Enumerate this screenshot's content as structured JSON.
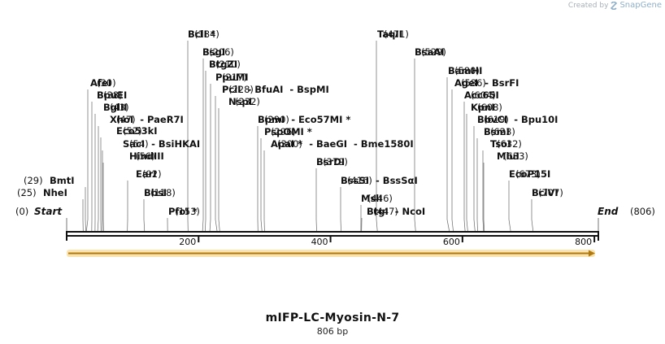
{
  "watermark": {
    "prefix": "Created by",
    "brand": "SnapGene",
    "icon": "snapgene-logo-icon"
  },
  "map": {
    "name": "mIFP-LC-Myosin-N-7",
    "length_text": "806 bp",
    "length": 806,
    "start_label": "Start",
    "start_pos": "(0)",
    "end_label": "End",
    "end_pos": "(806)",
    "tick_values": [
      200,
      400,
      600,
      800
    ],
    "feature_arrow_color": "#f5c56a",
    "sites": [
      {
        "label": "BmtI",
        "pos": "(29)",
        "bp": 29
      },
      {
        "label": "NheI",
        "pos": "(25)",
        "bp": 25
      },
      {
        "label": "AfeI",
        "pos": "(30)",
        "bp": 30
      },
      {
        "label": "BpuEI",
        "pos": "(38)",
        "bp": 38
      },
      {
        "label": "BglII",
        "pos": "(43)",
        "bp": 43
      },
      {
        "label": "XhoI  - PaeR7I",
        "pos": "(47)",
        "bp": 47
      },
      {
        "label": "Eco53kI",
        "pos": "(52)",
        "bp": 52
      },
      {
        "label": "SacI  - BsiHKAI",
        "pos": "(54)",
        "bp": 54
      },
      {
        "label": "HindIII",
        "pos": "(56)",
        "bp": 56
      },
      {
        "label": "EarI",
        "pos": "(92)",
        "bp": 92
      },
      {
        "label": "BbsI",
        "pos": "(118)",
        "bp": 118
      },
      {
        "label": "PfoI *",
        "pos": "(153)",
        "bp": 153
      },
      {
        "label": "BclI *",
        "pos": "(184)",
        "bp": 184
      },
      {
        "label": "BsgI",
        "pos": "(206)",
        "bp": 206
      },
      {
        "label": "BtgZI",
        "pos": "(210)",
        "bp": 210
      },
      {
        "label": "PpuMI",
        "pos": "(217)",
        "bp": 217
      },
      {
        "label": "PciI  - BfuAI  - BspMI",
        "pos": "(228)",
        "bp": 228
      },
      {
        "label": "NspI",
        "pos": "(232)",
        "bp": 232
      },
      {
        "label": "BpmI  - Eco57MI *",
        "pos": "(290)",
        "bp": 290
      },
      {
        "label": "PspOMI *",
        "pos": "(296)",
        "bp": 296
      },
      {
        "label": "ApaI *  - BaeGI  - Bme1580I",
        "pos": "(300)",
        "bp": 300
      },
      {
        "label": "BsrDI",
        "pos": "(379)",
        "bp": 379
      },
      {
        "label": "BssSI  - BssSαI",
        "pos": "(416)",
        "bp": 416
      },
      {
        "label": "MslI",
        "pos": "(446)",
        "bp": 446
      },
      {
        "label": "BtgI  - NcoI",
        "pos": "(447)",
        "bp": 447
      },
      {
        "label": "TaqII",
        "pos": "(471)",
        "bp": 471
      },
      {
        "label": "BsaAI",
        "pos": "(529)",
        "bp": 529
      },
      {
        "label": "BamHI",
        "pos": "(580)",
        "bp": 580
      },
      {
        "label": "AgeI  - BsrFI",
        "pos": "(586)",
        "bp": 586
      },
      {
        "label": "Acc65I",
        "pos": "(604)",
        "bp": 604
      },
      {
        "label": "KpnI",
        "pos": "(608)",
        "bp": 608
      },
      {
        "label": "BbvCI  - Bpu10I",
        "pos": "(619)",
        "bp": 619
      },
      {
        "label": "BsmI",
        "pos": "(623)",
        "bp": 623
      },
      {
        "label": "TsoI",
        "pos": "(632)",
        "bp": 632
      },
      {
        "label": "MluI",
        "pos": "(633)",
        "bp": 633
      },
      {
        "label": "EcoP15I",
        "pos": "(673)",
        "bp": 673
      },
      {
        "label": "BclVI",
        "pos": "(707)",
        "bp": 707
      }
    ]
  }
}
